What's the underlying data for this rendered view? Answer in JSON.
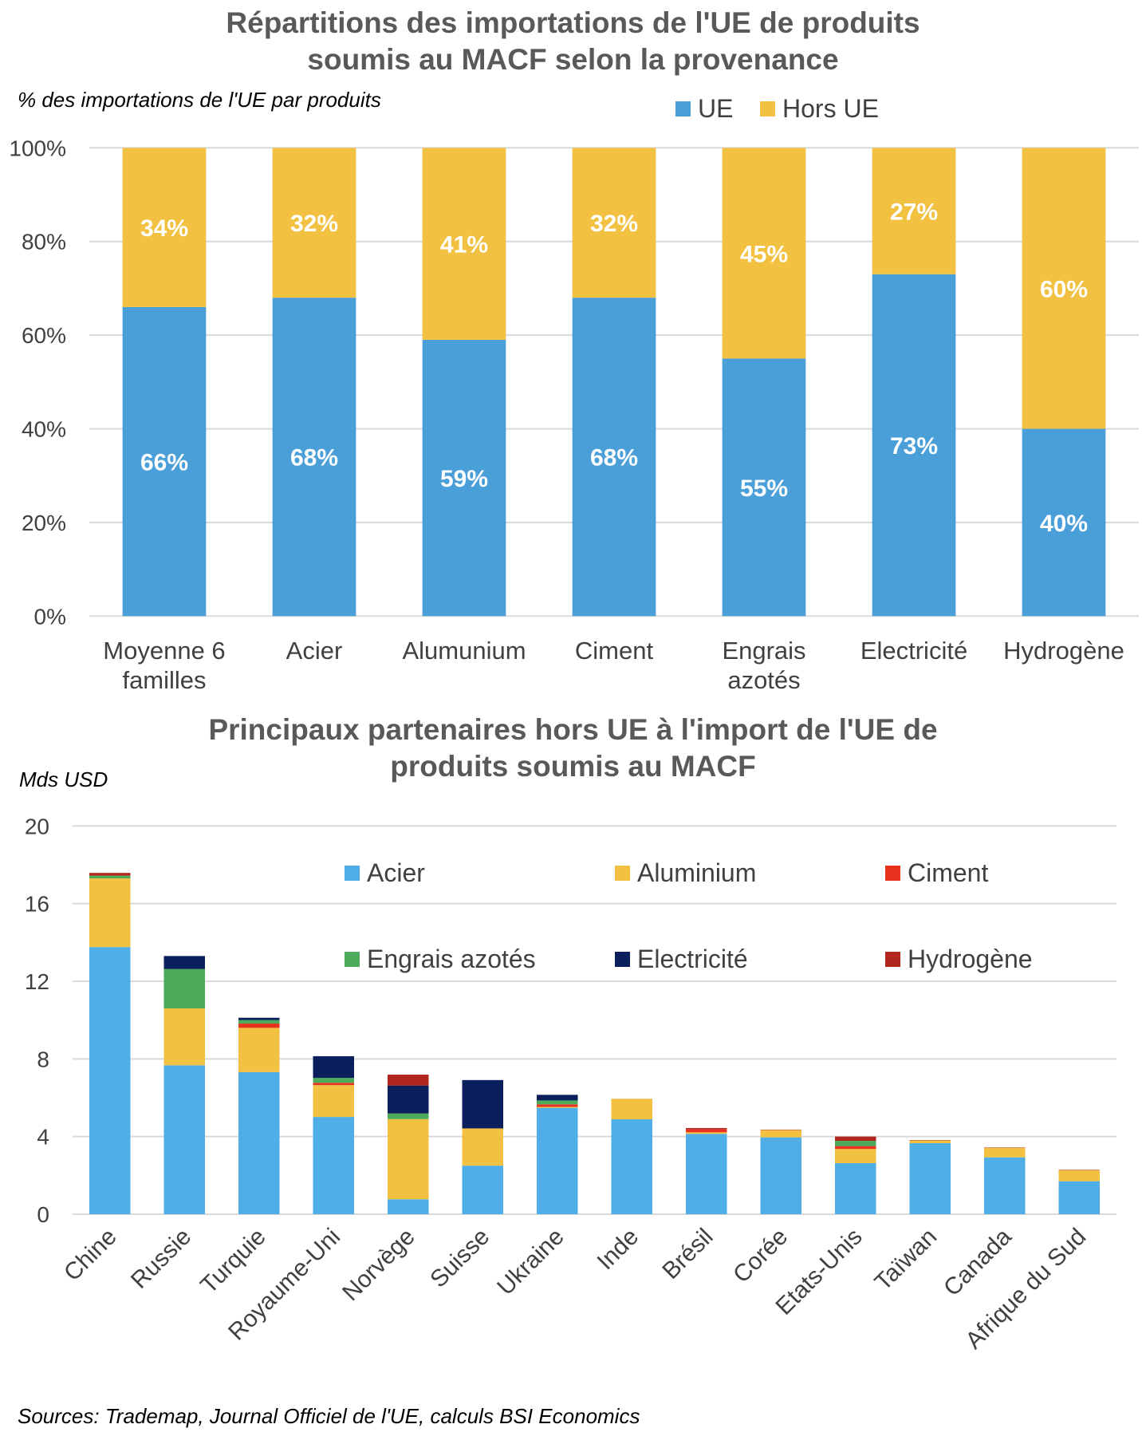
{
  "chart_data": [
    {
      "type": "bar",
      "stacked": true,
      "title": "Répartitions des importations de l'UE de produits soumis au MACF selon la provenance",
      "title_lines": [
        "Répartitions des importations de l'UE de produits",
        "soumis au MACF selon la provenance"
      ],
      "ylabel": "% des importations de l'UE par produits",
      "xlabel": "",
      "ylim": [
        0,
        100
      ],
      "yticks": [
        0,
        20,
        40,
        60,
        80,
        100
      ],
      "ytick_labels": [
        "0%",
        "20%",
        "40%",
        "60%",
        "80%",
        "100%"
      ],
      "grid": true,
      "legend_position": "top-right",
      "categories": [
        "Moyenne 6 familles",
        "Acier",
        "Alumunium",
        "Ciment",
        "Engrais azotés",
        "Electricité",
        "Hydrogène"
      ],
      "category_label_lines": [
        [
          "Moyenne 6",
          "familles"
        ],
        [
          "Acier"
        ],
        [
          "Alumunium"
        ],
        [
          "Ciment"
        ],
        [
          "Engrais",
          "azotés"
        ],
        [
          "Electricité"
        ],
        [
          "Hydrogène"
        ]
      ],
      "series": [
        {
          "name": "UE",
          "color": "#4A9FD9",
          "values": [
            66,
            68,
            59,
            68,
            55,
            73,
            40
          ],
          "labels": [
            "66%",
            "68%",
            "59%",
            "68%",
            "55%",
            "73%",
            "40%"
          ]
        },
        {
          "name": "Hors UE",
          "color": "#F2C141",
          "values": [
            34,
            32,
            41,
            32,
            45,
            27,
            60
          ],
          "labels": [
            "34%",
            "32%",
            "41%",
            "32%",
            "45%",
            "27%",
            "60%"
          ]
        }
      ]
    },
    {
      "type": "bar",
      "stacked": true,
      "title": "Principaux partenaires hors UE à l'import de l'UE de produits soumis au MACF",
      "title_lines": [
        "Principaux partenaires hors UE à l'import de l'UE de",
        "produits soumis au MACF"
      ],
      "ylabel": "Mds USD",
      "xlabel": "",
      "ylim": [
        0,
        20
      ],
      "yticks": [
        0,
        4,
        8,
        12,
        16,
        20
      ],
      "ytick_labels": [
        "0",
        "4",
        "8",
        "12",
        "16",
        "20"
      ],
      "grid": true,
      "legend_position": "top-right",
      "categories": [
        "Chine",
        "Russie",
        "Turquie",
        "Royaume-Uni",
        "Norvège",
        "Suisse",
        "Ukraine",
        "Inde",
        "Brésil",
        "Corée",
        "Etats-Unis",
        "Taïwan",
        "Canada",
        "Afrique du Sud"
      ],
      "series": [
        {
          "name": "Acier",
          "color": "#4FAEE8",
          "values": [
            13.76,
            7.67,
            7.32,
            5.01,
            0.77,
            2.5,
            5.48,
            4.89,
            4.14,
            3.96,
            2.63,
            3.66,
            2.93,
            1.7
          ]
        },
        {
          "name": "Aluminium",
          "color": "#F2C141",
          "values": [
            3.54,
            2.93,
            2.28,
            1.64,
            4.13,
            1.92,
            0.05,
            1.06,
            0.08,
            0.38,
            0.73,
            0.14,
            0.49,
            0.57
          ]
        },
        {
          "name": "Ciment",
          "color": "#E8321E",
          "values": [
            0.0,
            0.0,
            0.22,
            0.12,
            0.0,
            0.0,
            0.13,
            0.0,
            0.15,
            0.0,
            0.15,
            0.0,
            0.0,
            0.0
          ]
        },
        {
          "name": "Engrais azotés",
          "color": "#4CAB5B",
          "values": [
            0.14,
            2.03,
            0.18,
            0.25,
            0.29,
            0.0,
            0.2,
            0.0,
            0.0,
            0.0,
            0.27,
            0.0,
            0.0,
            0.0
          ]
        },
        {
          "name": "Electricité",
          "color": "#0B1F5C",
          "values": [
            0.0,
            0.67,
            0.12,
            1.12,
            1.44,
            2.49,
            0.29,
            0.0,
            0.0,
            0.0,
            0.0,
            0.0,
            0.0,
            0.0
          ]
        },
        {
          "name": "Hydrogène",
          "color": "#B3261E",
          "values": [
            0.14,
            0.0,
            0.0,
            0.0,
            0.56,
            0.0,
            0.0,
            0.0,
            0.07,
            0.02,
            0.22,
            0.02,
            0.02,
            0.02
          ]
        }
      ]
    }
  ],
  "footer": {
    "sources": "Sources: Trademap, Journal Officiel de l'UE, calculs BSI Economics"
  }
}
